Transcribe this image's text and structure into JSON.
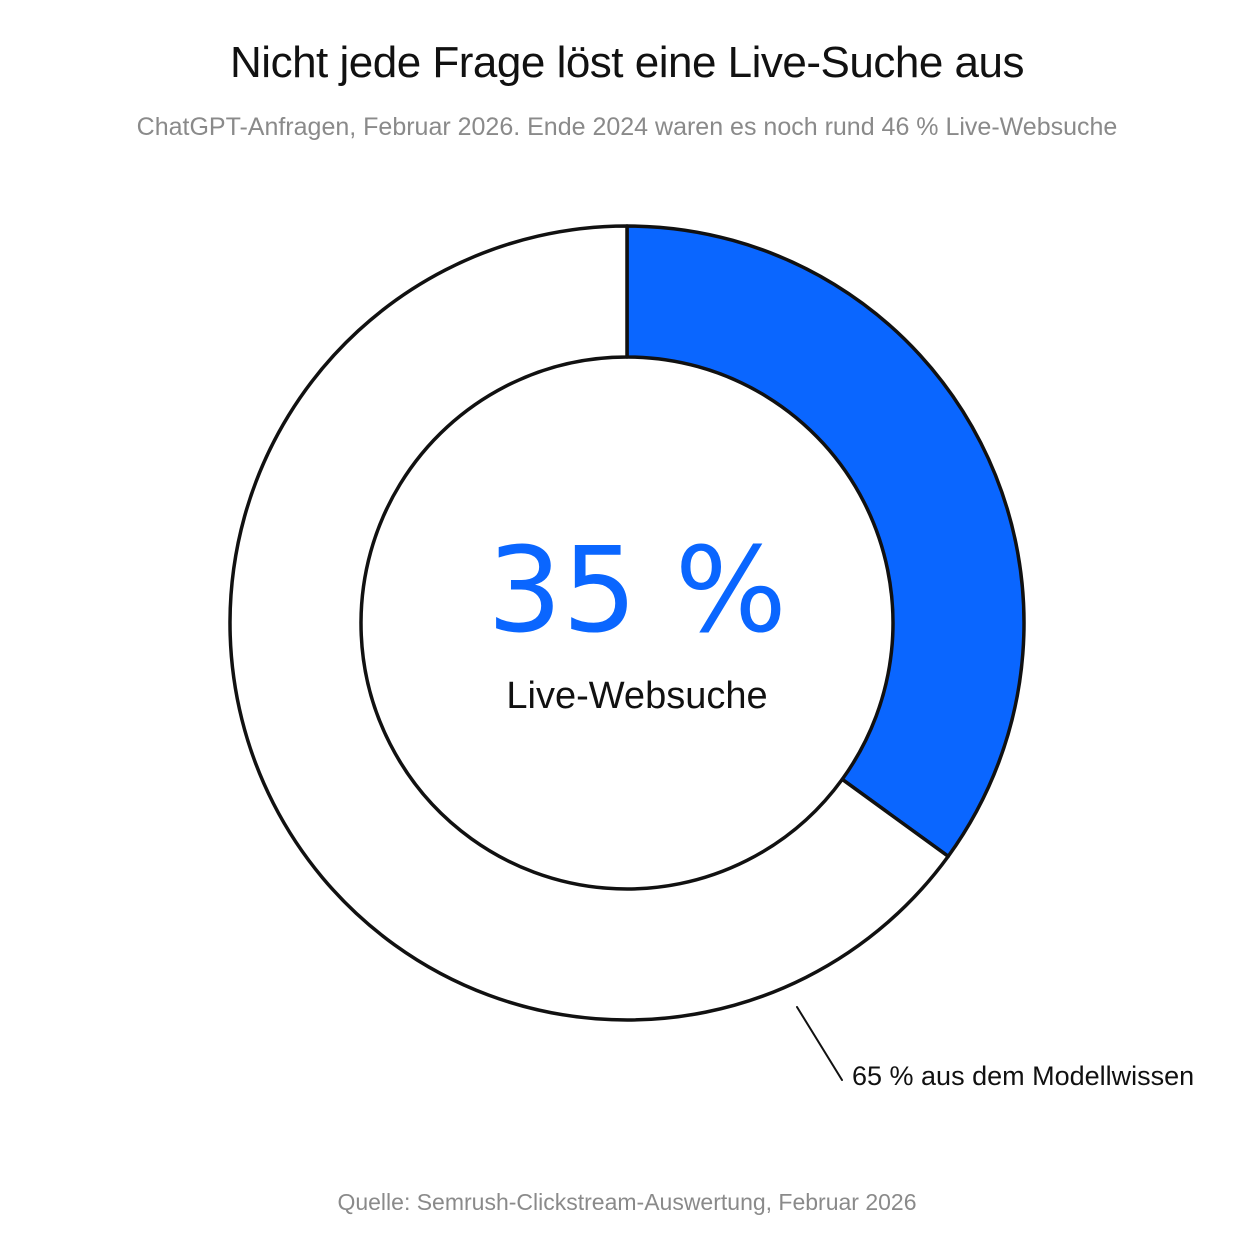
{
  "title": "Nicht jede Frage löst eine Live-Suche aus",
  "subtitle": "ChatGPT-Anfragen, Februar 2026. Ende 2024 waren es noch rund 46 % Live-Websuche",
  "source": "Quelle: Semrush-Clickstream-Auswertung, Februar 2026",
  "colors": {
    "accent": "#0a66ff",
    "remainder": "#ffffff",
    "outline": "#111111"
  },
  "chart_data": {
    "type": "pie",
    "variant": "donut",
    "title": "Nicht jede Frage löst eine Live-Suche aus",
    "subtitle": "ChatGPT-Anfragen, Februar 2026. Ende 2024 waren es noch rund 46 % Live-Websuche",
    "slices": [
      {
        "label": "Live-Websuche",
        "value": 35
      },
      {
        "label": "aus dem Modellwissen",
        "value": 65
      }
    ],
    "center_value": "35 %",
    "center_label": "Live-Websuche",
    "annotation": "65 % aus dem Modellwissen",
    "legend": "none"
  }
}
